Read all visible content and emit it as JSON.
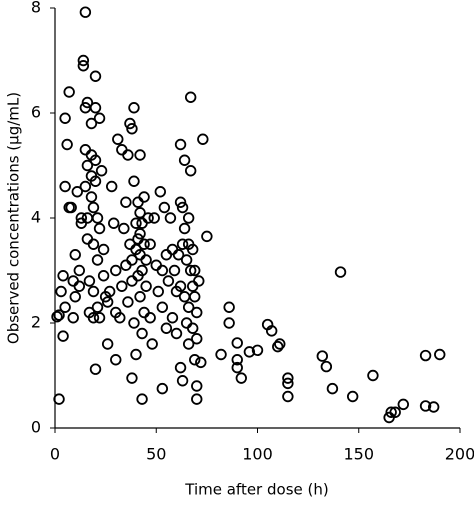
{
  "chart_data": {
    "type": "scatter",
    "x_label": "Time after dose (h)",
    "y_label": "Observed concentrations (μg/mL)",
    "color": "#000000",
    "xlim": [
      0,
      200
    ],
    "xticks": [
      0,
      50,
      100,
      150,
      200
    ],
    "ylim": [
      0,
      8
    ],
    "yticks": [
      0,
      2,
      4,
      6,
      8
    ],
    "grid": false,
    "x": [
      165,
      166,
      168,
      172,
      183,
      187,
      183,
      190,
      157,
      147,
      141,
      137,
      134,
      132,
      115,
      115,
      115,
      110,
      111,
      107,
      105,
      100,
      96,
      90,
      90,
      90,
      92,
      86,
      86,
      82,
      75,
      73,
      72,
      69,
      70,
      70,
      67,
      62,
      63,
      53,
      43,
      38,
      30,
      20,
      2,
      4,
      1,
      2,
      3,
      4,
      5,
      5,
      6,
      5,
      7,
      7,
      8,
      9,
      9,
      10,
      10,
      11,
      12,
      12,
      13,
      13,
      14,
      14,
      15,
      15,
      15,
      15,
      16,
      16,
      16,
      16,
      17,
      17,
      18,
      18,
      18,
      18,
      19,
      19,
      19,
      19,
      20,
      20,
      20,
      20,
      21,
      21,
      21,
      22,
      22,
      22,
      23,
      24,
      24,
      25,
      26,
      26,
      27,
      28,
      29,
      30,
      30,
      31,
      32,
      33,
      33,
      34,
      35,
      35,
      36,
      36,
      37,
      37,
      38,
      38,
      38,
      39,
      39,
      39,
      40,
      40,
      40,
      41,
      41,
      41,
      42,
      42,
      42,
      42,
      42,
      43,
      43,
      43,
      44,
      44,
      44,
      45,
      45,
      46,
      47,
      47,
      48,
      49,
      50,
      51,
      52,
      53,
      53,
      54,
      55,
      55,
      56,
      57,
      58,
      58,
      59,
      60,
      60,
      61,
      62,
      62,
      62,
      63,
      63,
      64,
      64,
      64,
      65,
      65,
      66,
      66,
      66,
      66,
      67,
      67,
      68,
      68,
      68,
      69,
      69,
      70,
      70,
      71
    ],
    "values": [
      0.2,
      0.3,
      0.3,
      0.45,
      0.42,
      0.4,
      1.38,
      1.4,
      1.0,
      0.6,
      2.97,
      0.75,
      1.17,
      1.37,
      0.6,
      0.85,
      0.95,
      1.55,
      1.6,
      1.85,
      1.97,
      1.48,
      1.45,
      1.62,
      1.3,
      1.15,
      0.95,
      2.0,
      2.3,
      1.4,
      3.65,
      5.5,
      1.25,
      1.3,
      0.55,
      0.8,
      6.3,
      1.15,
      0.9,
      0.75,
      0.55,
      0.95,
      1.3,
      1.12,
      0.55,
      1.75,
      2.12,
      2.15,
      2.6,
      2.9,
      2.3,
      4.6,
      5.4,
      5.9,
      6.4,
      4.2,
      4.2,
      2.1,
      2.8,
      2.5,
      3.3,
      4.5,
      3.0,
      2.7,
      3.9,
      4.0,
      6.9,
      7.0,
      7.92,
      6.1,
      5.3,
      4.6,
      6.2,
      5.0,
      4.0,
      3.6,
      2.2,
      2.8,
      5.8,
      5.2,
      4.8,
      4.4,
      4.2,
      3.5,
      2.6,
      2.1,
      6.7,
      6.1,
      5.1,
      4.7,
      4.0,
      3.2,
      2.3,
      5.9,
      3.8,
      2.1,
      4.9,
      3.4,
      2.9,
      2.5,
      2.4,
      1.6,
      2.6,
      4.6,
      3.9,
      3.0,
      2.2,
      5.5,
      2.1,
      5.3,
      2.7,
      3.8,
      4.3,
      3.1,
      5.2,
      2.4,
      5.8,
      3.5,
      5.7,
      3.2,
      2.8,
      6.1,
      4.7,
      2.0,
      3.9,
      3.4,
      1.4,
      4.3,
      3.6,
      2.9,
      5.2,
      4.1,
      3.7,
      3.3,
      2.5,
      3.9,
      3.0,
      1.8,
      4.4,
      3.5,
      2.2,
      3.2,
      2.7,
      4.0,
      3.5,
      2.1,
      1.6,
      4.0,
      3.1,
      2.6,
      4.5,
      3.0,
      2.3,
      4.2,
      3.3,
      1.9,
      2.8,
      4.0,
      3.4,
      2.1,
      3.0,
      2.6,
      1.8,
      3.3,
      4.3,
      5.4,
      2.7,
      4.2,
      3.5,
      5.1,
      3.8,
      2.5,
      3.2,
      2.0,
      4.0,
      3.5,
      2.3,
      1.6,
      3.0,
      4.9,
      2.7,
      3.4,
      1.9,
      2.5,
      3.0,
      2.2,
      1.7,
      2.8
    ]
  }
}
